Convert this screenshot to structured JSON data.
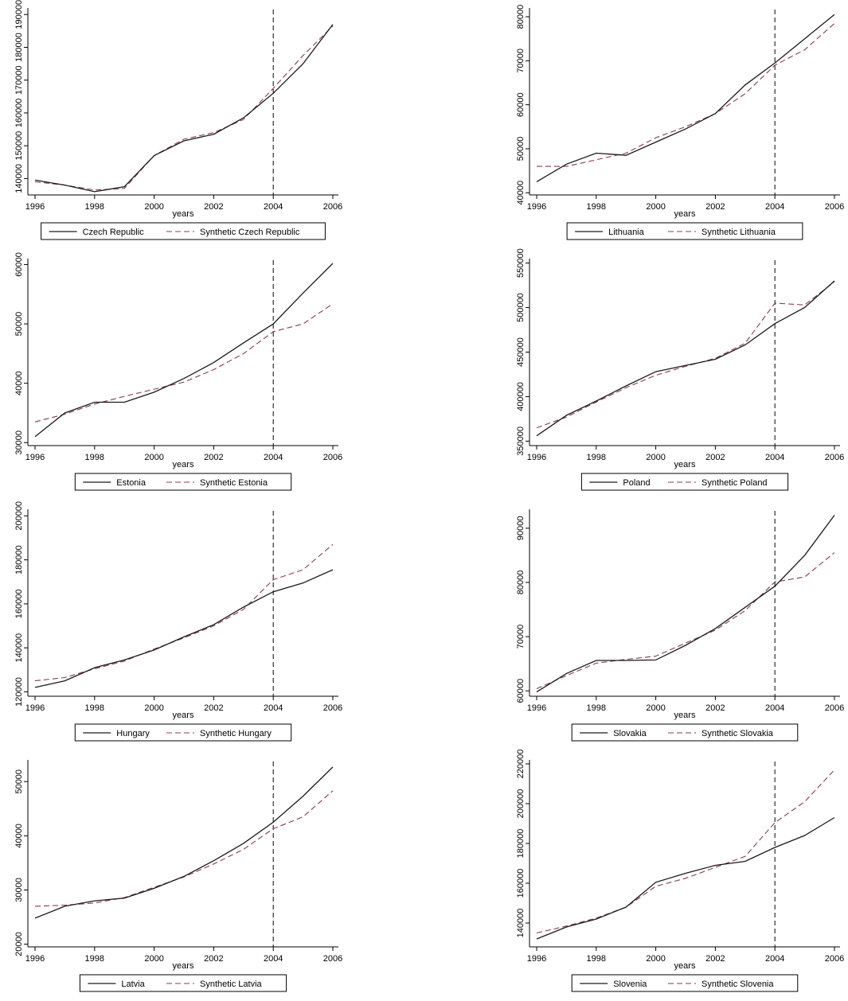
{
  "chart_data": [
    {
      "type": "line",
      "xlabel": "years",
      "ylabel": "",
      "x": [
        1996,
        1997,
        1998,
        1999,
        2000,
        2001,
        2002,
        2003,
        2004,
        2005,
        2006
      ],
      "xticks": [
        1996,
        1998,
        2000,
        2002,
        2004,
        2006
      ],
      "ylim": [
        135000,
        192000
      ],
      "yticks": [
        140000,
        150000,
        160000,
        170000,
        180000,
        190000
      ],
      "vline": 2004,
      "series": [
        {
          "name": "Czech Republic",
          "style": "solid",
          "color": "#1a1a1a",
          "values": [
            139500,
            138000,
            136000,
            137500,
            147000,
            151500,
            153500,
            158500,
            166000,
            175000,
            187000
          ]
        },
        {
          "name": "Synthetic Czech Republic",
          "style": "dashed",
          "color": "#8b3a4e",
          "values": [
            139000,
            138000,
            136500,
            137000,
            147000,
            152000,
            154000,
            158000,
            167500,
            177500,
            186500
          ]
        }
      ]
    },
    {
      "type": "line",
      "xlabel": "years",
      "ylabel": "",
      "x": [
        1996,
        1997,
        1998,
        1999,
        2000,
        2001,
        2002,
        2003,
        2004,
        2005,
        2006
      ],
      "xticks": [
        1996,
        1998,
        2000,
        2002,
        2004,
        2006
      ],
      "ylim": [
        39500,
        82000
      ],
      "yticks": [
        40000,
        50000,
        60000,
        70000,
        80000
      ],
      "vline": 2004,
      "series": [
        {
          "name": "Lithuania",
          "style": "solid",
          "color": "#1a1a1a",
          "values": [
            42500,
            46500,
            49000,
            48500,
            51500,
            54500,
            58000,
            64500,
            69500,
            75000,
            80500
          ]
        },
        {
          "name": "Synthetic Lithuania",
          "style": "dashed",
          "color": "#8b3a4e",
          "values": [
            46000,
            46000,
            47500,
            49000,
            52500,
            55000,
            58000,
            62500,
            69000,
            72500,
            78500
          ]
        }
      ]
    },
    {
      "type": "line",
      "xlabel": "years",
      "ylabel": "",
      "x": [
        1996,
        1997,
        1998,
        1999,
        2000,
        2001,
        2002,
        2003,
        2004,
        2005,
        2006
      ],
      "xticks": [
        1996,
        1998,
        2000,
        2002,
        2004,
        2006
      ],
      "ylim": [
        29500,
        61000
      ],
      "yticks": [
        30000,
        40000,
        50000,
        60000
      ],
      "vline": 2004,
      "series": [
        {
          "name": "Estonia",
          "style": "solid",
          "color": "#1a1a1a",
          "values": [
            31000,
            35000,
            36800,
            36800,
            38500,
            40800,
            43500,
            46800,
            50000,
            55200,
            60200
          ]
        },
        {
          "name": "Synthetic Estonia",
          "style": "dashed",
          "color": "#8b3a4e",
          "values": [
            33500,
            34800,
            36500,
            37800,
            39000,
            40200,
            42300,
            45000,
            48700,
            50000,
            53400
          ]
        }
      ]
    },
    {
      "type": "line",
      "xlabel": "years",
      "ylabel": "",
      "x": [
        1996,
        1997,
        1998,
        1999,
        2000,
        2001,
        2002,
        2003,
        2004,
        2005,
        2006
      ],
      "xticks": [
        1996,
        1998,
        2000,
        2002,
        2004,
        2006
      ],
      "ylim": [
        345000,
        555000
      ],
      "yticks": [
        350000,
        400000,
        450000,
        500000,
        550000
      ],
      "vline": 2004,
      "series": [
        {
          "name": "Poland",
          "style": "solid",
          "color": "#1a1a1a",
          "values": [
            356000,
            379000,
            395000,
            412000,
            428000,
            435000,
            442000,
            458000,
            482000,
            500000,
            530000
          ]
        },
        {
          "name": "Synthetic Poland",
          "style": "dashed",
          "color": "#8b3a4e",
          "values": [
            365000,
            377000,
            394000,
            410000,
            424000,
            434000,
            443000,
            460000,
            505000,
            503000,
            529000
          ]
        }
      ]
    },
    {
      "type": "line",
      "xlabel": "years",
      "ylabel": "",
      "x": [
        1996,
        1997,
        1998,
        1999,
        2000,
        2001,
        2002,
        2003,
        2004,
        2005,
        2006
      ],
      "xticks": [
        1996,
        1998,
        2000,
        2002,
        2004,
        2006
      ],
      "ylim": [
        118000,
        203000
      ],
      "yticks": [
        120000,
        140000,
        160000,
        180000,
        200000
      ],
      "vline": 2004,
      "series": [
        {
          "name": "Hungary",
          "style": "solid",
          "color": "#1a1a1a",
          "values": [
            122000,
            125000,
            131000,
            134500,
            139000,
            145000,
            150500,
            158500,
            165500,
            169500,
            175500
          ]
        },
        {
          "name": "Synthetic Hungary",
          "style": "dashed",
          "color": "#8b3a4e",
          "values": [
            125000,
            126500,
            130500,
            134000,
            139500,
            144500,
            150000,
            157500,
            171000,
            175500,
            187000
          ]
        }
      ]
    },
    {
      "type": "line",
      "xlabel": "years",
      "ylabel": "",
      "x": [
        1996,
        1997,
        1998,
        1999,
        2000,
        2001,
        2002,
        2003,
        2004,
        2005,
        2006
      ],
      "xticks": [
        1996,
        1998,
        2000,
        2002,
        2004,
        2006
      ],
      "ylim": [
        59000,
        93500
      ],
      "yticks": [
        60000,
        70000,
        80000,
        90000
      ],
      "vline": 2004,
      "series": [
        {
          "name": "Slovakia",
          "style": "solid",
          "color": "#1a1a1a",
          "values": [
            59800,
            63200,
            65600,
            65600,
            65700,
            68400,
            71500,
            75400,
            79300,
            85000,
            92400
          ]
        },
        {
          "name": "Synthetic Slovakia",
          "style": "dashed",
          "color": "#8b3a4e",
          "values": [
            60400,
            62800,
            65100,
            65800,
            66400,
            68800,
            71200,
            74800,
            80100,
            81000,
            85500
          ]
        }
      ]
    },
    {
      "type": "line",
      "xlabel": "years",
      "ylabel": "",
      "x": [
        1996,
        1997,
        1998,
        1999,
        2000,
        2001,
        2002,
        2003,
        2004,
        2005,
        2006
      ],
      "xticks": [
        1996,
        1998,
        2000,
        2002,
        2004,
        2006
      ],
      "ylim": [
        19500,
        54000
      ],
      "yticks": [
        20000,
        30000,
        40000,
        50000
      ],
      "vline": 2004,
      "series": [
        {
          "name": "Latvia",
          "style": "solid",
          "color": "#1a1a1a",
          "values": [
            24800,
            27000,
            28000,
            28500,
            30300,
            32500,
            35400,
            38600,
            42500,
            47300,
            52700
          ]
        },
        {
          "name": "Synthetic Latvia",
          "style": "dashed",
          "color": "#8b3a4e",
          "values": [
            27000,
            27200,
            27600,
            28600,
            30500,
            32400,
            34800,
            37500,
            41300,
            43500,
            48300
          ]
        }
      ]
    },
    {
      "type": "line",
      "xlabel": "years",
      "ylabel": "",
      "x": [
        1996,
        1997,
        1998,
        1999,
        2000,
        2001,
        2002,
        2003,
        2004,
        2005,
        2006
      ],
      "xticks": [
        1996,
        1998,
        2000,
        2002,
        2004,
        2006
      ],
      "ylim": [
        128000,
        222000
      ],
      "yticks": [
        140000,
        160000,
        180000,
        200000,
        220000
      ],
      "vline": 2004,
      "series": [
        {
          "name": "Slovenia",
          "style": "solid",
          "color": "#1a1a1a",
          "values": [
            132000,
            138000,
            142000,
            148000,
            160500,
            165000,
            169000,
            171000,
            178000,
            184000,
            193000
          ]
        },
        {
          "name": "Synthetic Slovenia",
          "style": "dashed",
          "color": "#8b3a4e",
          "values": [
            135000,
            138500,
            142500,
            148000,
            158500,
            162500,
            168000,
            173500,
            190500,
            201000,
            217000
          ]
        }
      ]
    }
  ]
}
